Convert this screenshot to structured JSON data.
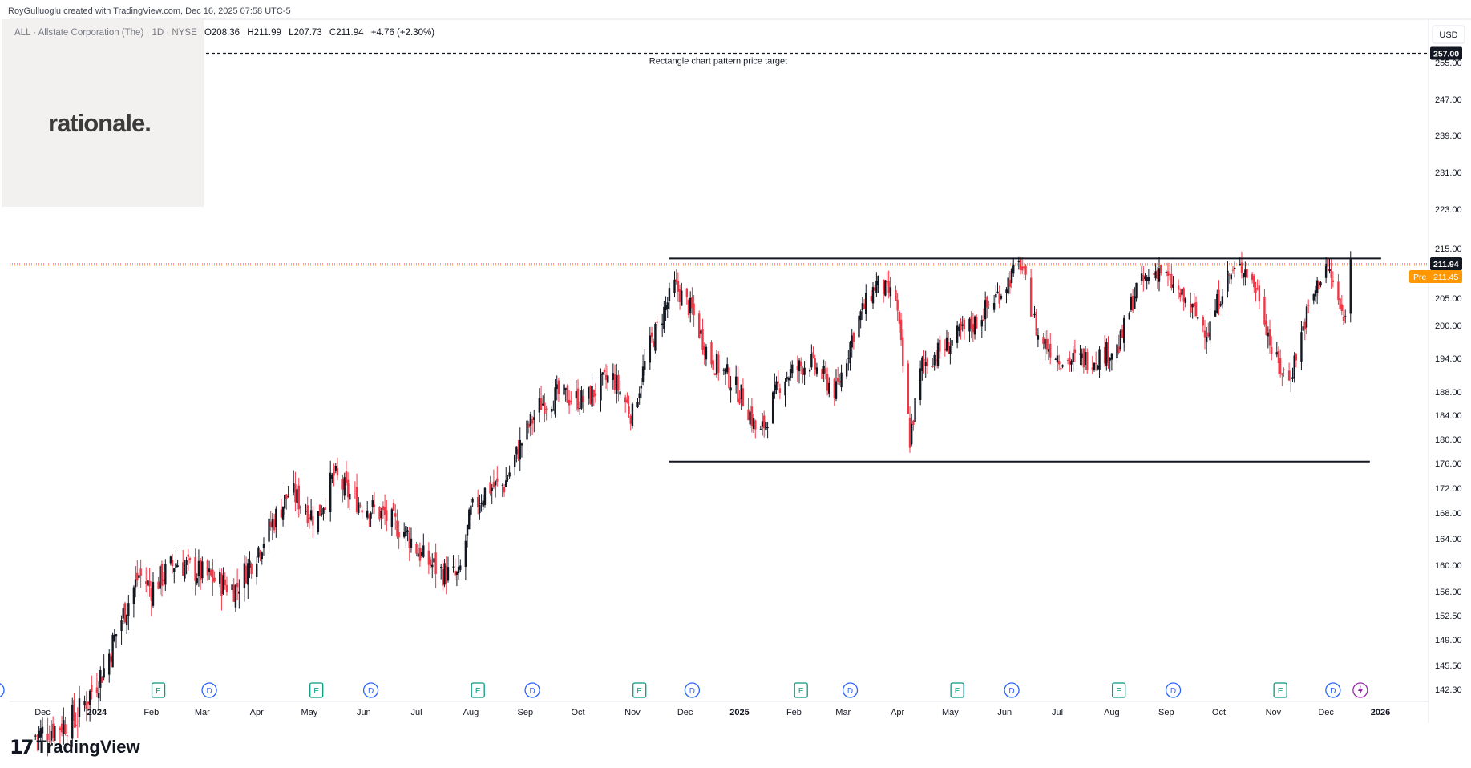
{
  "header": {
    "attribution": "RoyGulluoglu created with TradingView.com, Dec 16, 2025 07:58 UTC-5",
    "symbol": "ALL · Allstate Corporation (The) · 1D · NYSE",
    "ohlc": {
      "open": "O208.36",
      "high": "H211.99",
      "low": "L207.73",
      "close": "C211.94",
      "change": "+4.76 (+2.30%)"
    }
  },
  "logo": {
    "text": "rationale."
  },
  "brand": {
    "text": "TradingView",
    "icon": "tradingview-logo-icon"
  },
  "colors": {
    "up": "#131722",
    "down": "#f23645",
    "accent": "#ff9800",
    "event_d": "#2962ff",
    "event_e": "#089981",
    "splash": "#9c27b0"
  },
  "chart_data": {
    "type": "candlestick",
    "currency": "USD",
    "yaxis_ticks": [
      "255.00",
      "247.00",
      "239.00",
      "231.00",
      "223.00",
      "215.00",
      "205.00",
      "200.00",
      "194.00",
      "188.00",
      "184.00",
      "180.00",
      "176.00",
      "172.00",
      "168.00",
      "164.00",
      "160.00",
      "156.00",
      "152.50",
      "149.00",
      "145.50",
      "142.30"
    ],
    "xaxis_ticks": [
      "Dec",
      "2024",
      "Feb",
      "Mar",
      "Apr",
      "May",
      "Jun",
      "Jul",
      "Aug",
      "Sep",
      "Oct",
      "Nov",
      "Dec",
      "2025",
      "Feb",
      "Mar",
      "Apr",
      "May",
      "Jun",
      "Jul",
      "Aug",
      "Sep",
      "Oct",
      "Nov",
      "Dec",
      "2026"
    ],
    "price_labels": [
      {
        "value": "257.00",
        "style": "target"
      },
      {
        "value": "211.94",
        "style": "last"
      },
      {
        "label": "Pre",
        "value": "211.45",
        "style": "premarket"
      }
    ],
    "annotation": {
      "text": "Rectangle chart pattern price target",
      "price": 257.0
    },
    "pattern": {
      "name": "rectangle",
      "resistance": 213.0,
      "support": 176.3,
      "start": "2024-11",
      "end": "2025-12"
    },
    "last_price": 211.94,
    "premarket_price": 211.45,
    "events": [
      {
        "type": "D",
        "date": "2023-11"
      },
      {
        "type": "E",
        "date": "2024-02"
      },
      {
        "type": "D",
        "date": "2024-03"
      },
      {
        "type": "E",
        "date": "2024-05"
      },
      {
        "type": "D",
        "date": "2024-06"
      },
      {
        "type": "E",
        "date": "2024-08"
      },
      {
        "type": "D",
        "date": "2024-09"
      },
      {
        "type": "E",
        "date": "2024-11"
      },
      {
        "type": "D",
        "date": "2024-12"
      },
      {
        "type": "E",
        "date": "2025-02"
      },
      {
        "type": "D",
        "date": "2025-03"
      },
      {
        "type": "E",
        "date": "2025-05"
      },
      {
        "type": "D",
        "date": "2025-06"
      },
      {
        "type": "E",
        "date": "2025-08"
      },
      {
        "type": "D",
        "date": "2025-09"
      },
      {
        "type": "E",
        "date": "2025-11"
      },
      {
        "type": "D",
        "date": "2025-12"
      },
      {
        "type": "S",
        "date": "2025-12"
      }
    ],
    "price_path": [
      {
        "date": "2023-11-25",
        "close": 136.0
      },
      {
        "date": "2023-12-20",
        "close": 138.5
      },
      {
        "date": "2024-01-05",
        "close": 145.0
      },
      {
        "date": "2024-01-15",
        "close": 152.0
      },
      {
        "date": "2024-01-25",
        "close": 158.5
      },
      {
        "date": "2024-02-01",
        "close": 156.5
      },
      {
        "date": "2024-02-15",
        "close": 160.5
      },
      {
        "date": "2024-03-10",
        "close": 157.5
      },
      {
        "date": "2024-03-20",
        "close": 156.5
      },
      {
        "date": "2024-04-05",
        "close": 164.0
      },
      {
        "date": "2024-04-20",
        "close": 171.5
      },
      {
        "date": "2024-05-05",
        "close": 167.0
      },
      {
        "date": "2024-05-15",
        "close": 174.0
      },
      {
        "date": "2024-05-25",
        "close": 170.5
      },
      {
        "date": "2024-06-10",
        "close": 168.0
      },
      {
        "date": "2024-06-25",
        "close": 165.0
      },
      {
        "date": "2024-07-05",
        "close": 161.0
      },
      {
        "date": "2024-07-15",
        "close": 159.0
      },
      {
        "date": "2024-07-25",
        "close": 158.0
      },
      {
        "date": "2024-08-01",
        "close": 168.0
      },
      {
        "date": "2024-08-10",
        "close": 172.0
      },
      {
        "date": "2024-08-20",
        "close": 172.5
      },
      {
        "date": "2024-09-01",
        "close": 181.0
      },
      {
        "date": "2024-09-10",
        "close": 186.0
      },
      {
        "date": "2024-09-20",
        "close": 187.5
      },
      {
        "date": "2024-10-05",
        "close": 186.5
      },
      {
        "date": "2024-10-20",
        "close": 191.0
      },
      {
        "date": "2024-11-01",
        "close": 184.0
      },
      {
        "date": "2024-11-10",
        "close": 195.5
      },
      {
        "date": "2024-11-25",
        "close": 207.5
      },
      {
        "date": "2024-12-05",
        "close": 202.5
      },
      {
        "date": "2024-12-15",
        "close": 194.0
      },
      {
        "date": "2024-12-25",
        "close": 191.0
      },
      {
        "date": "2025-01-05",
        "close": 186.0
      },
      {
        "date": "2025-01-12",
        "close": 180.0
      },
      {
        "date": "2025-01-25",
        "close": 190.5
      },
      {
        "date": "2025-02-10",
        "close": 193.5
      },
      {
        "date": "2025-02-25",
        "close": 188.0
      },
      {
        "date": "2025-03-08",
        "close": 200.0
      },
      {
        "date": "2025-03-20",
        "close": 208.0
      },
      {
        "date": "2025-03-31",
        "close": 205.0
      },
      {
        "date": "2025-04-08",
        "close": 180.0
      },
      {
        "date": "2025-04-15",
        "close": 193.0
      },
      {
        "date": "2025-04-28",
        "close": 196.0
      },
      {
        "date": "2025-05-15",
        "close": 200.5
      },
      {
        "date": "2025-05-30",
        "close": 206.5
      },
      {
        "date": "2025-06-10",
        "close": 212.0
      },
      {
        "date": "2025-06-20",
        "close": 198.0
      },
      {
        "date": "2025-07-05",
        "close": 193.5
      },
      {
        "date": "2025-07-20",
        "close": 194.0
      },
      {
        "date": "2025-08-05",
        "close": 196.0
      },
      {
        "date": "2025-08-15",
        "close": 207.0
      },
      {
        "date": "2025-08-28",
        "close": 211.0
      },
      {
        "date": "2025-09-10",
        "close": 205.0
      },
      {
        "date": "2025-09-25",
        "close": 199.0
      },
      {
        "date": "2025-10-05",
        "close": 209.0
      },
      {
        "date": "2025-10-15",
        "close": 211.5
      },
      {
        "date": "2025-10-25",
        "close": 205.0
      },
      {
        "date": "2025-11-01",
        "close": 194.0
      },
      {
        "date": "2025-11-10",
        "close": 190.0
      },
      {
        "date": "2025-11-20",
        "close": 202.0
      },
      {
        "date": "2025-12-01",
        "close": 212.0
      },
      {
        "date": "2025-12-05",
        "close": 208.0
      },
      {
        "date": "2025-12-11",
        "close": 200.5
      },
      {
        "date": "2025-12-15",
        "close": 211.94
      }
    ],
    "grid": false,
    "legend": "top-left"
  }
}
